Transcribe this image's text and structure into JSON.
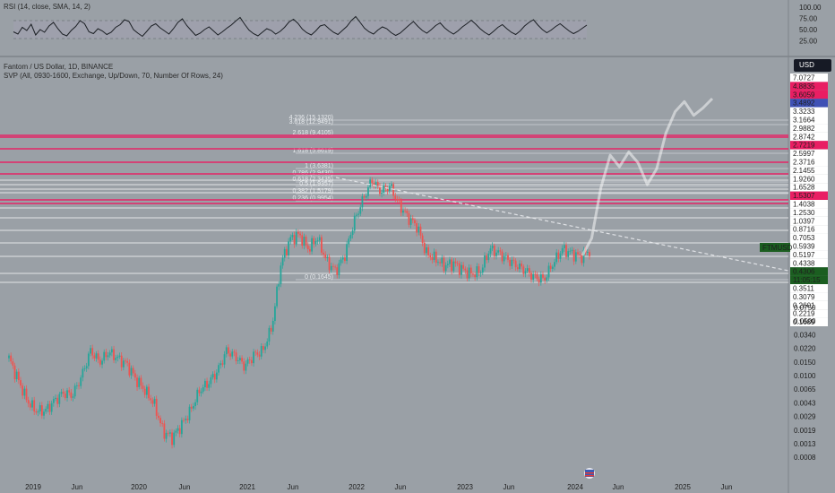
{
  "rsi": {
    "title": "RSI (14, close, SMA, 14, 2)",
    "levels": [
      "100.00",
      "75.00",
      "50.00",
      "25.00"
    ]
  },
  "header": {
    "symbol_line": "Fantom / US Dollar, 1D, BINANCE",
    "indicator_line": "SVP (All, 0930-1600, Exchange, Up/Down, 70, Number Of Rows, 24)",
    "currency_button": "USD"
  },
  "colors": {
    "background": "#9aa0a6",
    "up": "#26a69a",
    "down": "#ef5350",
    "highlight": "#e91e63",
    "price_tag": "#1b5e20",
    "projection": "#f5f5f5"
  },
  "chart_data": {
    "type": "candlestick",
    "scale": "log",
    "x_ticks": [
      "2019",
      "Jun",
      "2020",
      "Jun",
      "2021",
      "Jun",
      "2022",
      "Jun",
      "2023",
      "Jun",
      "2024",
      "Jun",
      "2025",
      "Jun"
    ],
    "y_ticks_log": [
      "0.0750",
      "0.0500",
      "0.0340",
      "0.0220",
      "0.0150",
      "0.0100",
      "0.0065",
      "0.0043",
      "0.0029",
      "0.0019",
      "0.0013",
      "0.0008"
    ],
    "price_scale_labels": [
      {
        "text": "7.0727",
        "style": "white"
      },
      {
        "text": "4.8835",
        "style": "pink"
      },
      {
        "text": "3.6059",
        "style": "pink"
      },
      {
        "text": "3.4892",
        "style": "blue"
      },
      {
        "text": "3.3233",
        "style": "white"
      },
      {
        "text": "3.1664",
        "style": "white"
      },
      {
        "text": "2.9882",
        "style": "white"
      },
      {
        "text": "2.8742",
        "style": "white"
      },
      {
        "text": "2.7219",
        "style": "pink"
      },
      {
        "text": "2.5997",
        "style": "white"
      },
      {
        "text": "2.3716",
        "style": "white"
      },
      {
        "text": "2.1455",
        "style": "white"
      },
      {
        "text": "1.9260",
        "style": "white"
      },
      {
        "text": "1.6528",
        "style": "white"
      },
      {
        "text": "1.5307",
        "style": "pink"
      },
      {
        "text": "1.4038",
        "style": "white"
      },
      {
        "text": "1.2530",
        "style": "white"
      },
      {
        "text": "1.0397",
        "style": "white"
      },
      {
        "text": "0.8716",
        "style": "white"
      },
      {
        "text": "0.7053",
        "style": "white"
      },
      {
        "text": "0.5939",
        "style": "white"
      },
      {
        "text": "0.5197",
        "style": "white"
      },
      {
        "text": "0.4338",
        "style": "white"
      },
      {
        "text": "0.4306",
        "style": "green"
      },
      {
        "text": "11:05:15",
        "style": "green"
      },
      {
        "text": "0.3511",
        "style": "white"
      },
      {
        "text": "0.3079",
        "style": "white"
      },
      {
        "text": "0.2601",
        "style": "white"
      },
      {
        "text": "0.2219",
        "style": "white"
      },
      {
        "text": "0.1689",
        "style": "white"
      }
    ],
    "ticker_label": "FTMUSD",
    "fib_levels": [
      {
        "label": "4.236 (15.1320)"
      },
      {
        "label": "3.618 (12.9491)"
      },
      {
        "label": "2.618 (9.4105)"
      },
      {
        "label": "1.618 (5.8619)"
      },
      {
        "label": "1 (3.6381)"
      },
      {
        "label": "0.786 (2.9430)"
      },
      {
        "label": "0.618 (2.3435)"
      },
      {
        "label": "0.5 (1.9357)"
      },
      {
        "label": "0.382 (1.5179)"
      },
      {
        "label": "0.236 (0.9954)"
      },
      {
        "label": "0 (0.1645)"
      }
    ],
    "price_series": [
      0.02,
      0.011,
      0.006,
      0.0045,
      0.0045,
      0.006,
      0.0075,
      0.007,
      0.012,
      0.025,
      0.018,
      0.024,
      0.02,
      0.017,
      0.011,
      0.008,
      0.0055,
      0.0025,
      0.0021,
      0.003,
      0.0045,
      0.008,
      0.01,
      0.014,
      0.025,
      0.021,
      0.016,
      0.022,
      0.025,
      0.05,
      0.3,
      0.6,
      0.68,
      0.45,
      0.62,
      0.32,
      0.24,
      0.37,
      0.95,
      1.8,
      3.2,
      2.3,
      2.7,
      1.6,
      1.1,
      0.85,
      0.4,
      0.34,
      0.28,
      0.3,
      0.25,
      0.22,
      0.24,
      0.45,
      0.4,
      0.33,
      0.28,
      0.24,
      0.2,
      0.19,
      0.3,
      0.45,
      0.4,
      0.36,
      0.43
    ],
    "projection_series": [
      0.43,
      0.6,
      1.6,
      3.0,
      2.4,
      3.2,
      2.6,
      1.7,
      2.3,
      4.6,
      7.0,
      8.5,
      6.5,
      7.5,
      9.0
    ],
    "rsi_values": [
      45,
      40,
      55,
      48,
      62,
      38,
      50,
      44,
      58,
      66,
      52,
      40,
      36,
      48,
      57,
      70,
      63,
      45,
      41,
      52,
      47,
      39,
      44,
      55,
      61,
      72,
      68,
      50,
      42,
      35,
      46,
      58,
      63,
      54,
      47,
      40,
      52,
      66,
      74,
      59,
      48,
      37,
      42,
      50,
      56,
      47,
      38,
      45,
      53,
      60,
      69,
      77,
      62,
      49,
      41,
      36,
      44,
      52,
      48,
      40,
      46,
      55,
      67,
      73,
      64,
      51,
      43,
      38,
      47,
      58,
      61,
      52,
      44,
      39,
      48,
      57,
      70,
      79,
      66,
      53,
      45,
      40,
      49,
      56,
      52,
      43,
      37,
      42,
      51,
      60,
      68,
      57,
      48,
      42,
      50,
      59,
      65,
      54,
      46,
      40,
      47,
      56,
      63,
      71,
      62,
      52,
      44,
      38,
      46,
      55,
      61,
      52,
      44,
      39,
      47,
      58,
      66,
      72,
      60,
      50,
      43,
      49,
      57,
      63,
      55,
      47,
      41,
      46,
      53,
      60
    ]
  }
}
